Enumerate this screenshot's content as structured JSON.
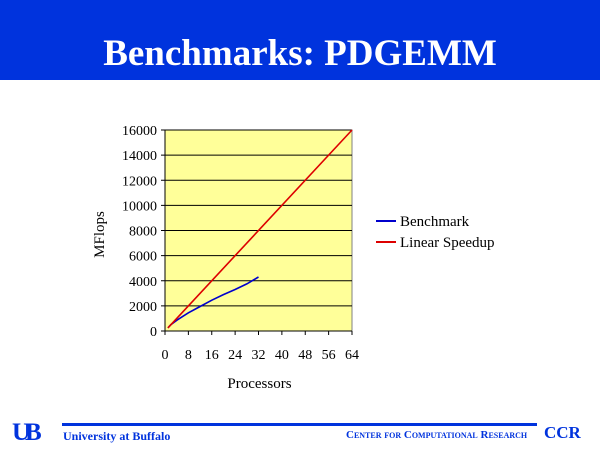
{
  "slide": {
    "title": "Benchmarks: PDGEMM",
    "header_color": "#0033dd"
  },
  "footer": {
    "logo_text": "UB",
    "university": "University at Buffalo",
    "center_name": "Center for Computational Research",
    "center_abbrev": "CCR",
    "color": "#0033dd"
  },
  "chart_data": {
    "type": "line",
    "title": "",
    "xlabel": "Processors",
    "ylabel": "MFlops",
    "xlim": [
      0,
      64
    ],
    "ylim": [
      0,
      16000
    ],
    "xticks": [
      0,
      8,
      16,
      24,
      32,
      40,
      48,
      56,
      64
    ],
    "yticks": [
      0,
      2000,
      4000,
      6000,
      8000,
      10000,
      12000,
      14000,
      16000
    ],
    "grid": true,
    "plot_background": "#ffff99",
    "legend_position": "right",
    "series": [
      {
        "name": "Benchmark",
        "color": "#0000cc",
        "points": [
          [
            1,
            250
          ],
          [
            2,
            500
          ],
          [
            4,
            850
          ],
          [
            6,
            1150
          ],
          [
            8,
            1450
          ],
          [
            12,
            1950
          ],
          [
            16,
            2450
          ],
          [
            20,
            2900
          ],
          [
            24,
            3300
          ],
          [
            28,
            3750
          ],
          [
            32,
            4300
          ]
        ]
      },
      {
        "name": "Linear Speedup",
        "color": "#dd0000",
        "points": [
          [
            1,
            250
          ],
          [
            64,
            16000
          ]
        ]
      }
    ]
  }
}
